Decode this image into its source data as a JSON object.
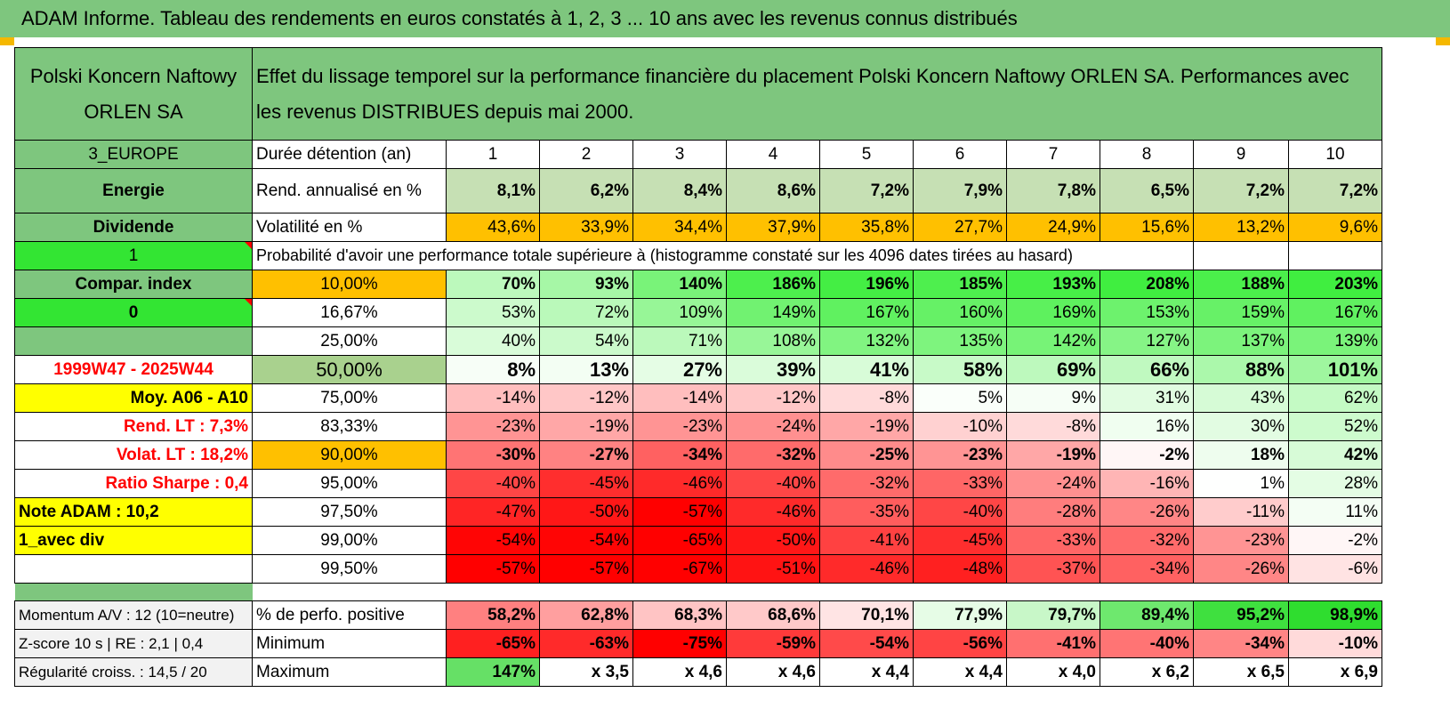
{
  "title": "ADAM Informe. Tableau des rendements en euros constatés à 1, 2, 3 ... 10 ans avec les revenus connus distribués",
  "header": {
    "company": "Polski Koncern Naftowy ORLEN SA",
    "description": "Effet du lissage temporel sur la performance financière du placement Polski Koncern Naftowy ORLEN SA. Performances avec les revenus DISTRIBUES depuis mai 2000."
  },
  "left_col": {
    "region": "3_EUROPE",
    "sector": "Energie",
    "type": "Dividende",
    "val1": "1",
    "compar": "Compar. index",
    "val0": "0",
    "period": "1999W47 - 2025W44",
    "moy": "Moy. A06 - A10",
    "rend_lt": "Rend. LT :   7,3%",
    "volat_lt": "Volat. LT :   18,2%",
    "sharpe": "Ratio Sharpe :    0,4",
    "note": "Note ADAM : 10,2",
    "avec_div": "1_avec div"
  },
  "years_label": "Durée détention (an)",
  "years": [
    "1",
    "2",
    "3",
    "4",
    "5",
    "6",
    "7",
    "8",
    "9",
    "10"
  ],
  "rend_label": "Rend. annualisé en %",
  "rend": [
    "8,1%",
    "6,2%",
    "8,4%",
    "8,6%",
    "7,2%",
    "7,9%",
    "7,8%",
    "6,5%",
    "7,2%",
    "7,2%"
  ],
  "vol_label": "Volatilité en %",
  "vol": [
    "43,6%",
    "33,9%",
    "34,4%",
    "37,9%",
    "35,8%",
    "27,7%",
    "24,9%",
    "15,6%",
    "13,2%",
    "9,6%"
  ],
  "prob_label": "Probabilité d'avoir une performance totale supérieure à (histogramme constaté sur les 4096 dates tirées au hasard)",
  "percentiles": [
    {
      "p": "10,00%",
      "v": [
        "70%",
        "93%",
        "140%",
        "186%",
        "196%",
        "185%",
        "193%",
        "208%",
        "188%",
        "203%"
      ]
    },
    {
      "p": "16,67%",
      "v": [
        "53%",
        "72%",
        "109%",
        "149%",
        "167%",
        "160%",
        "169%",
        "153%",
        "159%",
        "167%"
      ]
    },
    {
      "p": "25,00%",
      "v": [
        "40%",
        "54%",
        "71%",
        "108%",
        "132%",
        "135%",
        "142%",
        "127%",
        "137%",
        "139%"
      ]
    },
    {
      "p": "50,00%",
      "v": [
        "8%",
        "13%",
        "27%",
        "39%",
        "41%",
        "58%",
        "69%",
        "66%",
        "88%",
        "101%"
      ]
    },
    {
      "p": "75,00%",
      "v": [
        "-14%",
        "-12%",
        "-14%",
        "-12%",
        "-8%",
        "5%",
        "9%",
        "31%",
        "43%",
        "62%"
      ]
    },
    {
      "p": "83,33%",
      "v": [
        "-23%",
        "-19%",
        "-23%",
        "-24%",
        "-19%",
        "-10%",
        "-8%",
        "16%",
        "30%",
        "52%"
      ]
    },
    {
      "p": "90,00%",
      "v": [
        "-30%",
        "-27%",
        "-34%",
        "-32%",
        "-25%",
        "-23%",
        "-19%",
        "-2%",
        "18%",
        "42%"
      ]
    },
    {
      "p": "95,00%",
      "v": [
        "-40%",
        "-45%",
        "-46%",
        "-40%",
        "-32%",
        "-33%",
        "-24%",
        "-16%",
        "1%",
        "28%"
      ]
    },
    {
      "p": "97,50%",
      "v": [
        "-47%",
        "-50%",
        "-57%",
        "-46%",
        "-35%",
        "-40%",
        "-28%",
        "-26%",
        "-11%",
        "11%"
      ]
    },
    {
      "p": "99,00%",
      "v": [
        "-54%",
        "-54%",
        "-65%",
        "-50%",
        "-41%",
        "-45%",
        "-33%",
        "-32%",
        "-23%",
        "-2%"
      ]
    },
    {
      "p": "99,50%",
      "v": [
        "-57%",
        "-57%",
        "-67%",
        "-51%",
        "-46%",
        "-48%",
        "-37%",
        "-34%",
        "-26%",
        "-6%"
      ]
    }
  ],
  "bottom": {
    "momentum": "Momentum A/V : 12 (10=neutre)",
    "zscore": "Z-score 10 s | RE : 2,1 | 0,4",
    "regularite": "Régularité croiss. : 14,5 / 20",
    "pos_label": "% de perfo. positive",
    "pos": [
      "58,2%",
      "62,8%",
      "68,3%",
      "68,6%",
      "70,1%",
      "77,9%",
      "79,7%",
      "89,4%",
      "95,2%",
      "98,9%"
    ],
    "min_label": "Minimum",
    "min": [
      "-65%",
      "-63%",
      "-75%",
      "-59%",
      "-54%",
      "-56%",
      "-41%",
      "-40%",
      "-34%",
      "-10%"
    ],
    "max_label": "Maximum",
    "max": [
      "147%",
      "x 3,5",
      "x 4,6",
      "x 4,6",
      "x 4,4",
      "x 4,4",
      "x 4,0",
      "x 6,2",
      "x 6,5",
      "x 6,9"
    ]
  }
}
